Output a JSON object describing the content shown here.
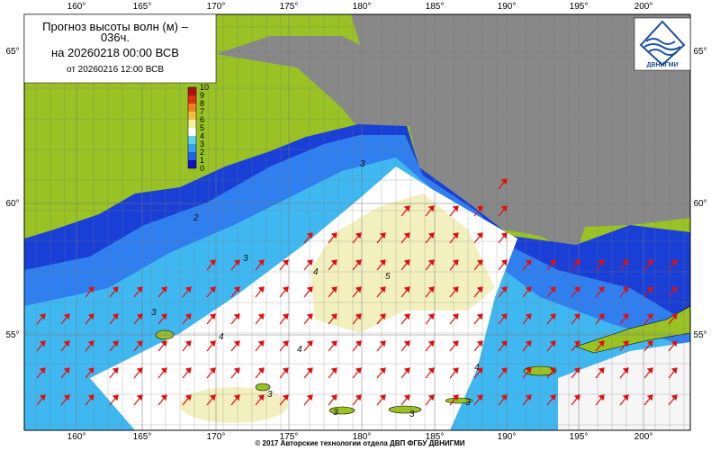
{
  "header": {
    "title_line1": "Прогноз высоты волн (м) –",
    "title_line2": "036ч.",
    "valid": "на 20260218 00:00 ВСВ",
    "issued": "от 20260216 12:00 ВСВ"
  },
  "logo": "ДВНИГМИ",
  "colorbar": {
    "labels": [
      10,
      9,
      8,
      7,
      6,
      5,
      4,
      3,
      2,
      1,
      0
    ]
  },
  "map": {
    "lon_labels": [
      "160°",
      "165°",
      "170°",
      "175°",
      "180°",
      "185°",
      "190°",
      "195°",
      "200°"
    ],
    "lat_labels": [
      "65°",
      "60°",
      "55°"
    ],
    "contour_labels": [
      "2",
      "3",
      "3",
      "4",
      "5",
      "3",
      "4",
      "4",
      "3",
      "3",
      "3",
      "3",
      "4"
    ]
  },
  "footer": "© 2017 Авторские технологии отдела ДВП ФГБУ ДВНИГМИ"
}
